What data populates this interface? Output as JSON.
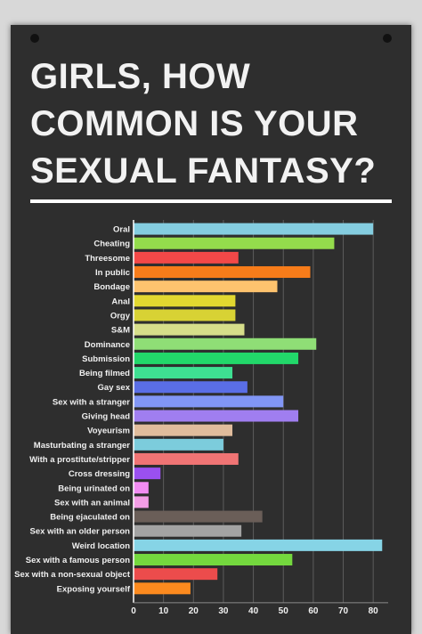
{
  "title": "GIRLS, HOW COMMON IS YOUR SEXUAL FANTASY?",
  "chart_data": {
    "type": "bar",
    "orientation": "horizontal",
    "categories": [
      "Oral",
      "Cheating",
      "Threesome",
      "In public",
      "Bondage",
      "Anal",
      "Orgy",
      "S&M",
      "Dominance",
      "Submission",
      "Being filmed",
      "Gay sex",
      "Sex with a stranger",
      "Giving head",
      "Voyeurism",
      "Masturbating a stranger",
      "With a prostitute/stripper",
      "Cross dressing",
      "Being urinated on",
      "Sex with an animal",
      "Being ejaculated on",
      "Sex with an older person",
      "Weird location",
      "Sex with a famous person",
      "Sex with a non-sexual object",
      "Exposing yourself"
    ],
    "values": [
      80,
      67,
      35,
      59,
      48,
      34,
      34,
      37,
      61,
      55,
      33,
      38,
      50,
      55,
      33,
      30,
      35,
      9,
      5,
      5,
      43,
      36,
      83,
      53,
      28,
      19
    ],
    "colors": [
      "#84cde0",
      "#94dc4c",
      "#f34848",
      "#f77c1a",
      "#fdc36e",
      "#e2d830",
      "#d8d234",
      "#d6de8a",
      "#8fde76",
      "#22d86a",
      "#3ee092",
      "#5a6ee6",
      "#8196f5",
      "#a07ef0",
      "#e0bc9c",
      "#7cccdc",
      "#f07474",
      "#9a50f0",
      "#f28cf2",
      "#f39de6",
      "#6a5e58",
      "#a3a3a3",
      "#86d4e6",
      "#74d83e",
      "#ec4c4c",
      "#fc8a1e"
    ],
    "xticks": [
      0,
      10,
      20,
      30,
      40,
      50,
      60,
      70,
      80
    ],
    "xlim": [
      0,
      85
    ],
    "grid": true,
    "legend": "none"
  }
}
